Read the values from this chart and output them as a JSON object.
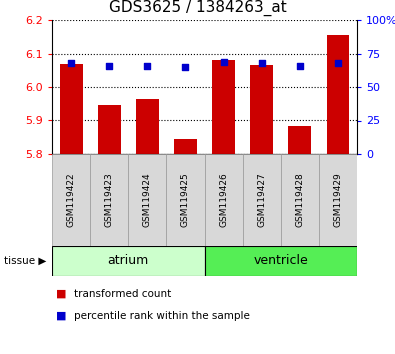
{
  "title": "GDS3625 / 1384263_at",
  "samples": [
    "GSM119422",
    "GSM119423",
    "GSM119424",
    "GSM119425",
    "GSM119426",
    "GSM119427",
    "GSM119428",
    "GSM119429"
  ],
  "transformed_counts": [
    6.07,
    5.945,
    5.965,
    5.845,
    6.08,
    6.065,
    5.885,
    6.155
  ],
  "percentile_ranks": [
    68,
    66,
    66,
    65,
    69,
    68,
    66,
    68
  ],
  "y_min": 5.8,
  "y_max": 6.2,
  "y_ticks": [
    5.8,
    5.9,
    6.0,
    6.1,
    6.2
  ],
  "right_y_ticks": [
    0,
    25,
    50,
    75,
    100
  ],
  "bar_color": "#cc0000",
  "dot_color": "#0000cc",
  "atrium_indices": [
    0,
    1,
    2,
    3
  ],
  "ventricle_indices": [
    4,
    5,
    6,
    7
  ],
  "atrium_label": "atrium",
  "ventricle_label": "ventricle",
  "tissue_label": "tissue",
  "legend_bar_label": "transformed count",
  "legend_dot_label": "percentile rank within the sample",
  "atrium_color": "#ccffcc",
  "ventricle_color": "#55ee55",
  "sample_box_color": "#d8d8d8",
  "title_fontsize": 11,
  "tick_fontsize": 8,
  "sample_fontsize": 6.5,
  "tissue_fontsize": 9,
  "legend_fontsize": 7.5
}
